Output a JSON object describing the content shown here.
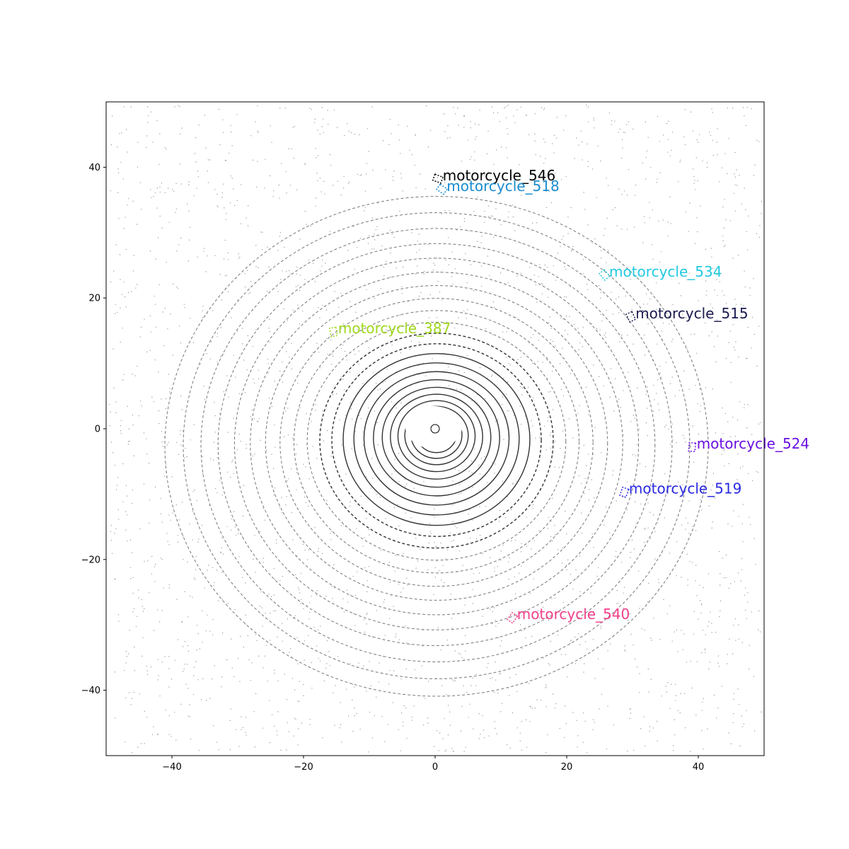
{
  "chart_data": {
    "type": "scatter",
    "title": "",
    "xlabel": "",
    "ylabel": "",
    "xlim": [
      -50,
      50
    ],
    "ylim": [
      -50,
      50
    ],
    "xticks": [
      "−40",
      "−20",
      "0",
      "20",
      "40"
    ],
    "yticks": [
      "−40",
      "−20",
      "0",
      "20",
      "40"
    ],
    "xtick_values": [
      -40,
      -20,
      0,
      20,
      40
    ],
    "ytick_values": [
      -40,
      -20,
      0,
      20,
      40
    ],
    "grid": false,
    "ego": {
      "x": 0,
      "y": 0
    },
    "objects": [
      {
        "label": "motorcycle_546",
        "x": 0.4,
        "y": 38.2,
        "color": "#000000"
      },
      {
        "label": "motorcycle_518",
        "x": 1.0,
        "y": 36.6,
        "color": "#1a8ccf"
      },
      {
        "label": "motorcycle_534",
        "x": 25.7,
        "y": 23.5,
        "color": "#22c9e0"
      },
      {
        "label": "motorcycle_515",
        "x": 29.7,
        "y": 17.1,
        "color": "#1a1a4d"
      },
      {
        "label": "motorcycle_387",
        "x": -15.5,
        "y": 14.8,
        "color": "#a0d81e"
      },
      {
        "label": "motorcycle_524",
        "x": 39.0,
        "y": -2.8,
        "color": "#6a0fe0"
      },
      {
        "label": "motorcycle_519",
        "x": 28.7,
        "y": -9.7,
        "color": "#2a2ae0"
      },
      {
        "label": "motorcycle_540",
        "x": 11.7,
        "y": -28.9,
        "color": "#f0408a"
      }
    ]
  }
}
